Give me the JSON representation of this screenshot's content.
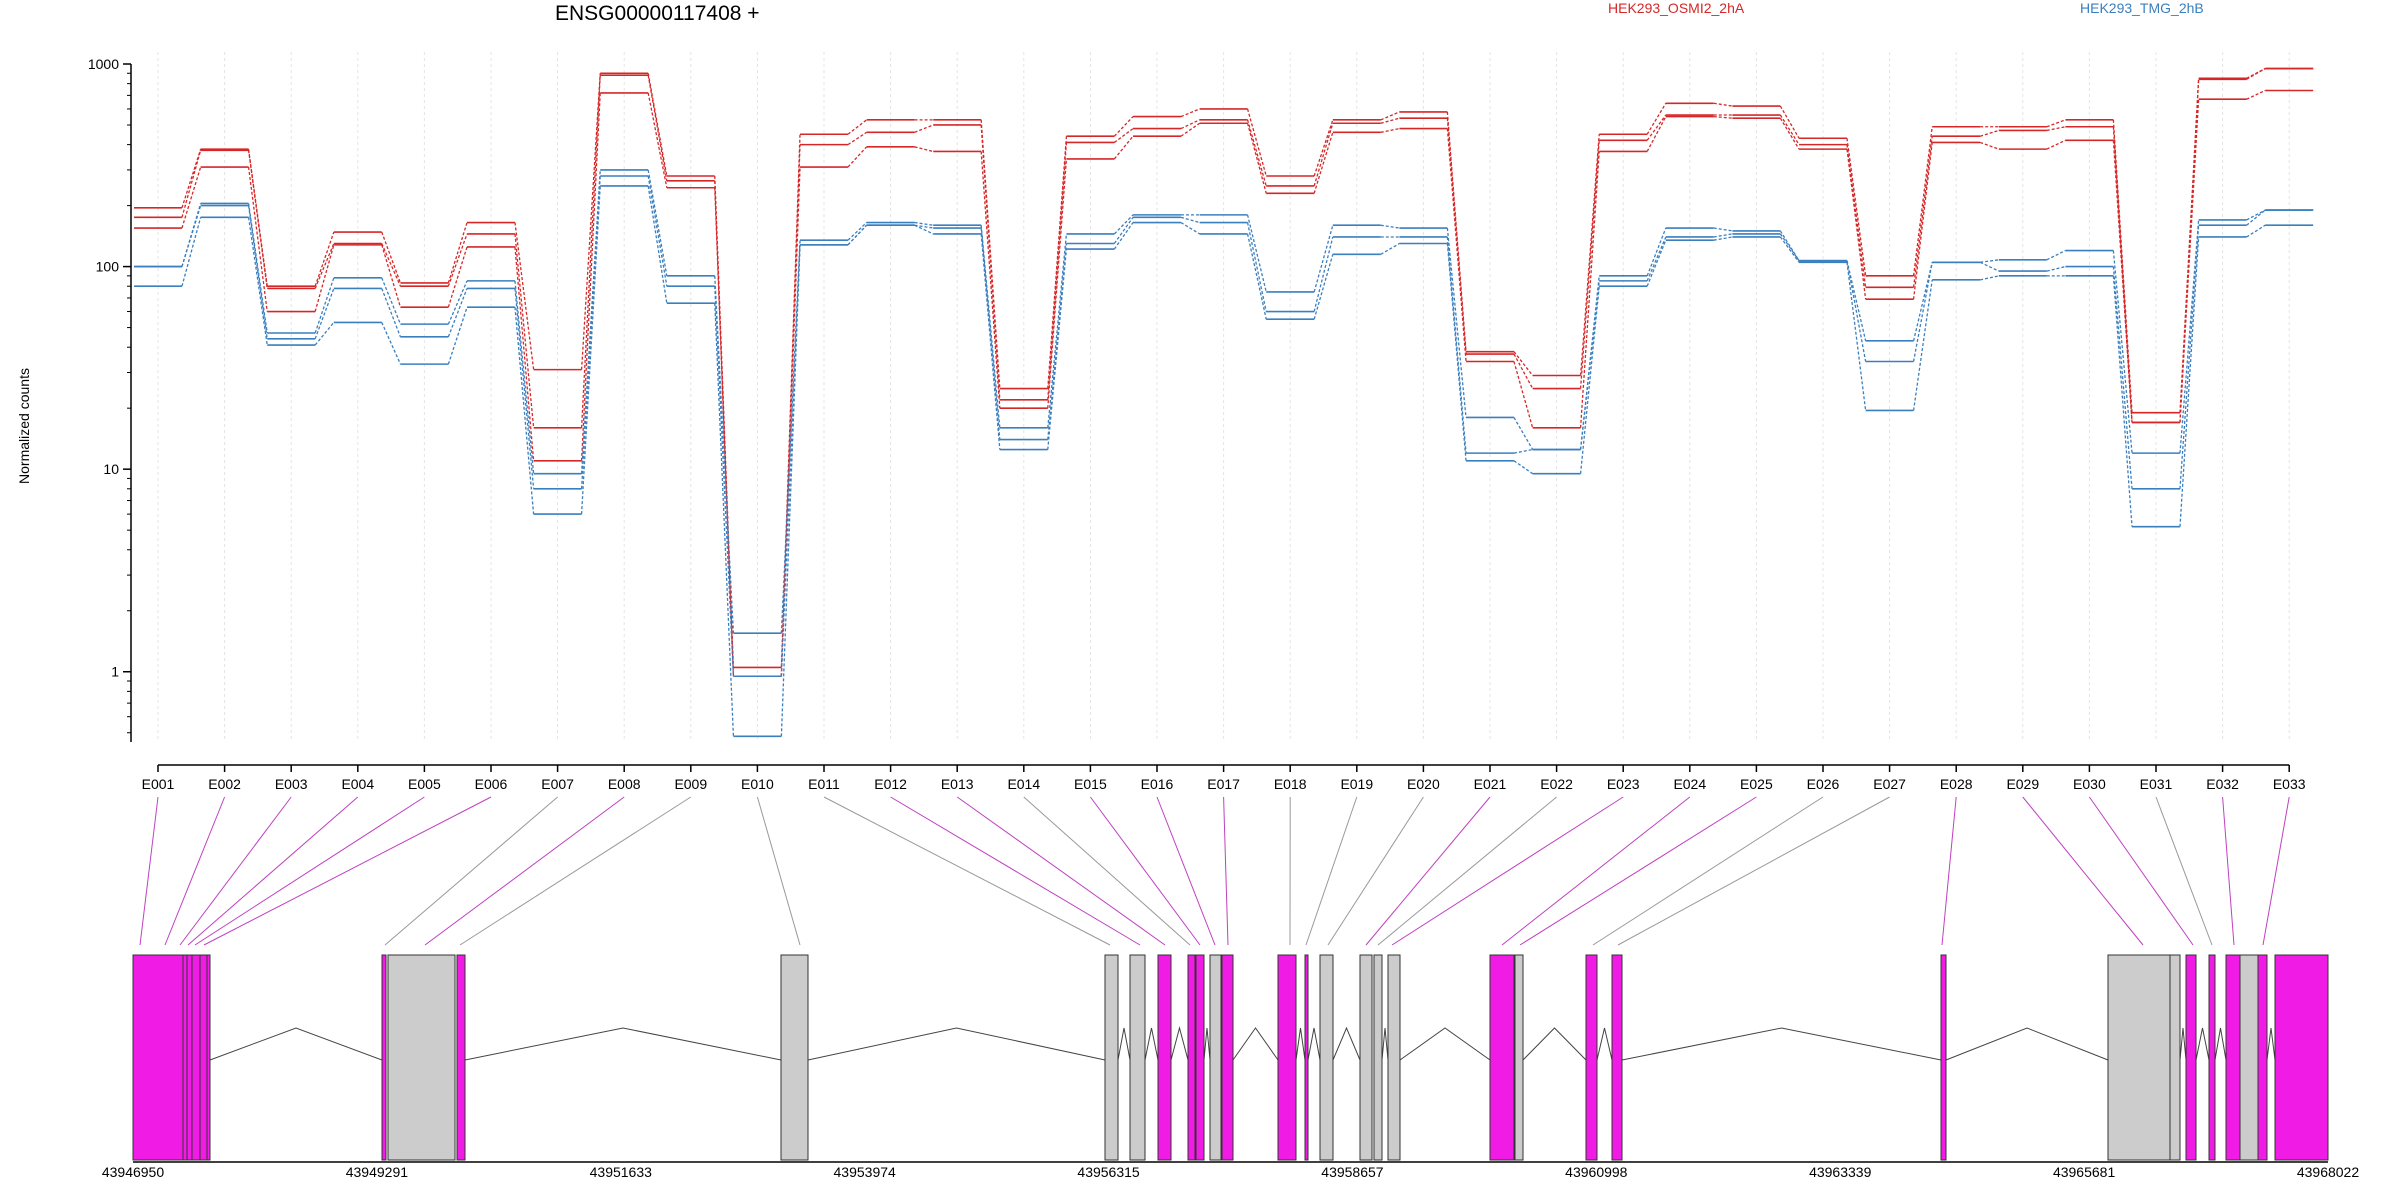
{
  "header": {
    "gene_title": "ENSG00000117408 +",
    "legend": [
      {
        "label": "HEK293_OSMI2_2hA",
        "color": "#d62728"
      },
      {
        "label": "HEK293_TMG_2hB",
        "color": "#3a7fbf"
      }
    ]
  },
  "chart_data": {
    "type": "line",
    "ylabel": "Normalized counts",
    "yscale": "log",
    "ylim": [
      0.45,
      1000
    ],
    "yticks": [
      "1",
      "10",
      "100",
      "1000"
    ],
    "grid": true,
    "categories": [
      "E001",
      "E002",
      "E003",
      "E004",
      "E005",
      "E006",
      "E007",
      "E008",
      "E009",
      "E010",
      "E011",
      "E012",
      "E013",
      "E014",
      "E015",
      "E016",
      "E017",
      "E018",
      "E019",
      "E020",
      "E021",
      "E022",
      "E023",
      "E024",
      "E025",
      "E026",
      "E027",
      "E028",
      "E029",
      "E030",
      "E031",
      "E032",
      "E033"
    ],
    "series": [
      {
        "group": "HEK293_OSMI2_2hA",
        "color": "#d62728",
        "values": [
          195,
          380,
          80,
          148,
          83,
          165,
          31,
          900,
          280,
          1.05,
          450,
          530,
          530,
          25,
          440,
          550,
          600,
          280,
          530,
          580,
          38,
          29,
          450,
          640,
          620,
          430,
          90,
          490,
          490,
          530,
          19,
          850,
          950
        ]
      },
      {
        "group": "HEK293_OSMI2_2hA",
        "color": "#d62728",
        "values": [
          175,
          375,
          78,
          130,
          80,
          145,
          16,
          880,
          265,
          0.95,
          400,
          460,
          500,
          22,
          410,
          480,
          530,
          250,
          510,
          540,
          37,
          25,
          420,
          560,
          560,
          400,
          79,
          440,
          470,
          490,
          17,
          840,
          950
        ]
      },
      {
        "group": "HEK293_OSMI2_2hA",
        "color": "#d62728",
        "values": [
          155,
          310,
          60,
          128,
          63,
          125,
          11,
          720,
          245,
          0.95,
          310,
          390,
          370,
          20,
          340,
          440,
          510,
          230,
          460,
          480,
          34,
          16,
          370,
          550,
          540,
          380,
          69,
          410,
          380,
          420,
          17,
          670,
          740
        ]
      },
      {
        "group": "HEK293_TMG_2hB",
        "color": "#3a7fbf",
        "values": [
          100,
          205,
          47,
          88,
          52,
          85,
          9.5,
          300,
          90,
          1.55,
          135,
          165,
          160,
          16,
          145,
          180,
          180,
          75,
          160,
          155,
          18,
          12.5,
          90,
          155,
          150,
          107,
          43,
          105,
          108,
          120,
          12,
          170,
          190
        ]
      },
      {
        "group": "HEK293_TMG_2hB",
        "color": "#3a7fbf",
        "values": [
          100,
          200,
          44,
          78,
          45,
          78,
          8,
          280,
          80,
          0.95,
          128,
          160,
          155,
          14,
          130,
          175,
          165,
          60,
          140,
          140,
          12,
          12.5,
          85,
          140,
          145,
          107,
          34,
          105,
          95,
          100,
          8,
          160,
          190
        ]
      },
      {
        "group": "HEK293_TMG_2hB",
        "color": "#3a7fbf",
        "values": [
          80,
          175,
          41,
          53,
          33,
          63,
          6,
          250,
          66,
          0.48,
          128,
          160,
          145,
          12.5,
          122,
          165,
          145,
          55,
          115,
          130,
          11,
          9.5,
          80,
          135,
          140,
          105,
          19.5,
          86,
          90,
          90,
          5.2,
          140,
          160
        ]
      }
    ],
    "gene_model": {
      "coordinate_labels": [
        "43946950",
        "43949291",
        "43951633",
        "43953974",
        "43956315",
        "43958657",
        "43960998",
        "43963339",
        "43965681",
        "43968022"
      ],
      "exon_colors": [
        "magenta",
        "magenta",
        "magenta",
        "magenta",
        "magenta",
        "magenta",
        "gray",
        "magenta",
        "gray",
        "gray",
        "gray",
        "magenta",
        "magenta",
        "gray",
        "magenta",
        "magenta",
        "magenta",
        "gray",
        "gray",
        "gray",
        "magenta",
        "gray",
        "magenta",
        "magenta",
        "magenta",
        "gray",
        "gray",
        "magenta",
        "magenta",
        "magenta",
        "gray",
        "magenta",
        "magenta"
      ]
    }
  }
}
